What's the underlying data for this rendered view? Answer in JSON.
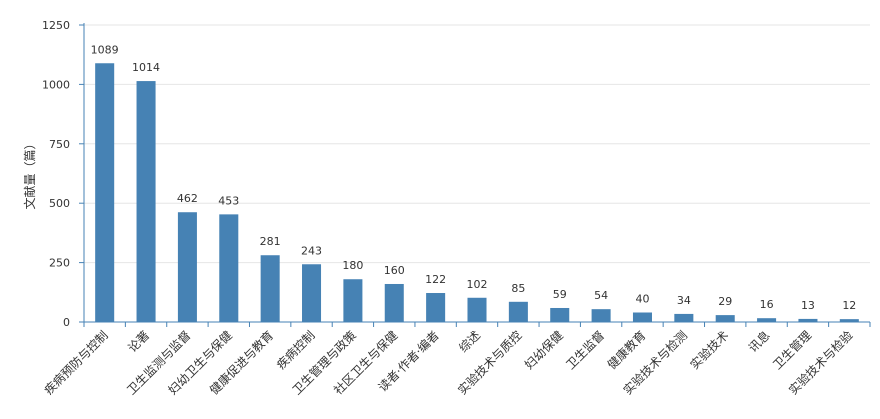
{
  "chart_data": {
    "type": "bar",
    "title": "",
    "xlabel": "",
    "ylabel": "文献量（篇）",
    "ylim": [
      0,
      1250
    ],
    "yticks": [
      0,
      250,
      500,
      750,
      1000,
      1250
    ],
    "grid": true,
    "bar_color": "#4682b4",
    "categories": [
      "疾病预防与控制",
      "论著",
      "卫生监测与监督",
      "妇幼卫生与保健",
      "健康促进与教育",
      "疾病控制",
      "卫生管理与政策",
      "社区卫生与保健",
      "读者·作者·编者",
      "综述",
      "实验技术与质控",
      "妇幼保健",
      "卫生监督",
      "健康教育",
      "实验技术与检测",
      "实验技术",
      "讯息",
      "卫生管理",
      "实验技术与检验"
    ],
    "values": [
      1089,
      1014,
      462,
      453,
      281,
      243,
      180,
      160,
      122,
      102,
      85,
      59,
      54,
      40,
      34,
      29,
      16,
      13,
      12
    ]
  }
}
